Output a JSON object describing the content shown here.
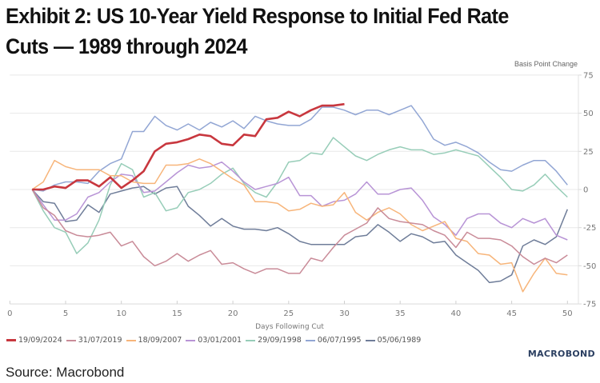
{
  "header": {
    "title": "Exhibit 2: US 10-Year Yield Response to Initial Fed Rate Cuts — 1989 through 2024"
  },
  "footer": {
    "source": "Source: Macrobond",
    "logo": "MACROBOND"
  },
  "chart_data": {
    "type": "line",
    "title": "Exhibit 2: US 10-Year Yield Response to Initial Fed Rate Cuts — 1989 through 2024",
    "xlabel": "Days Following Cut",
    "ylabel": "Basis Point Change",
    "xlim": [
      0,
      51
    ],
    "ylim": [
      -75,
      75
    ],
    "x_ticks": [
      0,
      5,
      10,
      15,
      20,
      25,
      30,
      35,
      40,
      45,
      50
    ],
    "y_ticks": [
      75,
      50,
      25,
      0,
      -25,
      -50,
      -75
    ],
    "y_axis_side": "right",
    "grid": true,
    "legend_position": "bottom-left",
    "x_start": 2,
    "series": [
      {
        "name": "19/09/2024",
        "color": "#c8373e",
        "width": 2.6,
        "values": [
          0,
          0,
          2,
          1,
          6,
          6,
          2,
          8,
          1,
          6,
          12,
          25,
          30,
          31,
          33,
          36,
          35,
          30,
          29,
          36,
          35,
          46,
          47,
          51,
          48,
          52,
          55,
          55,
          56
        ]
      },
      {
        "name": "31/07/2019",
        "color": "#c98b98",
        "width": 1.5,
        "values": [
          0,
          -12,
          -17,
          -27,
          -30,
          -31,
          -30,
          -28,
          -37,
          -34,
          -44,
          -50,
          -47,
          -42,
          -47,
          -43,
          -40,
          -49,
          -48,
          -52,
          -55,
          -52,
          -52,
          -55,
          -55,
          -45,
          -47,
          -38,
          -30,
          -26,
          -22,
          -12,
          -19,
          -21,
          -22,
          -23,
          -27,
          -30,
          -38,
          -28,
          -32,
          -32,
          -33,
          -37,
          -44,
          -49,
          -45,
          -48,
          -43
        ]
      },
      {
        "name": "18/09/2007",
        "color": "#f7b57a",
        "width": 1.5,
        "values": [
          0,
          5,
          19,
          15,
          13,
          13,
          13,
          9,
          9,
          5,
          4,
          4,
          16,
          16,
          17,
          20,
          17,
          12,
          7,
          3,
          -8,
          -8,
          -9,
          -14,
          -13,
          -9,
          -11,
          -10,
          -2,
          -15,
          -20,
          -15,
          -12,
          -16,
          -23,
          -27,
          -24,
          -21,
          -32,
          -34,
          -42,
          -43,
          -49,
          -48,
          -67,
          -55,
          -45,
          -55,
          -56
        ]
      },
      {
        "name": "03/01/2001",
        "color": "#b894d6",
        "width": 1.5,
        "values": [
          0,
          -10,
          -20,
          -20,
          -16,
          -5,
          -2,
          5,
          10,
          9,
          -2,
          -1,
          5,
          11,
          16,
          14,
          15,
          18,
          12,
          5,
          0,
          2,
          4,
          8,
          -4,
          -4,
          -11,
          -8,
          -7,
          -3,
          5,
          -3,
          -3,
          0,
          1,
          -7,
          -18,
          -23,
          -30,
          -19,
          -16,
          -16,
          -22,
          -25,
          -19,
          -22,
          -19,
          -30,
          -33
        ]
      },
      {
        "name": "29/09/1998",
        "color": "#97cdb8",
        "width": 1.5,
        "values": [
          0,
          -14,
          -25,
          -28,
          -42,
          -35,
          -20,
          3,
          17,
          13,
          -5,
          -2,
          -14,
          -12,
          -2,
          0,
          4,
          10,
          14,
          4,
          -2,
          -5,
          5,
          18,
          19,
          24,
          23,
          34,
          28,
          22,
          19,
          23,
          26,
          28,
          26,
          26,
          23,
          24,
          26,
          24,
          22,
          15,
          8,
          0,
          -1,
          3,
          10,
          2,
          -5
        ]
      },
      {
        "name": "06/07/1995",
        "color": "#92a6d4",
        "width": 1.5,
        "values": [
          0,
          -1,
          3,
          5,
          5,
          4,
          12,
          17,
          20,
          38,
          38,
          48,
          42,
          39,
          43,
          39,
          44,
          41,
          45,
          40,
          48,
          45,
          43,
          42,
          42,
          46,
          54,
          54,
          52,
          49,
          52,
          52,
          49,
          52,
          55,
          45,
          33,
          29,
          31,
          28,
          24,
          18,
          13,
          12,
          16,
          19,
          19,
          12,
          3
        ]
      },
      {
        "name": "05/06/1989",
        "color": "#6f7d99",
        "width": 1.5,
        "values": [
          0,
          -8,
          -9,
          -21,
          -20,
          -10,
          -15,
          -3,
          -1,
          1,
          2,
          -3,
          1,
          2,
          -11,
          -17,
          -24,
          -19,
          -24,
          -26,
          -26,
          -27,
          -25,
          -29,
          -34,
          -36,
          -36,
          -36,
          -36,
          -31,
          -30,
          -23,
          -28,
          -34,
          -29,
          -31,
          -35,
          -34,
          -43,
          -48,
          -53,
          -61,
          -60,
          -56,
          -37,
          -33,
          -36,
          -31,
          -13
        ]
      }
    ]
  }
}
